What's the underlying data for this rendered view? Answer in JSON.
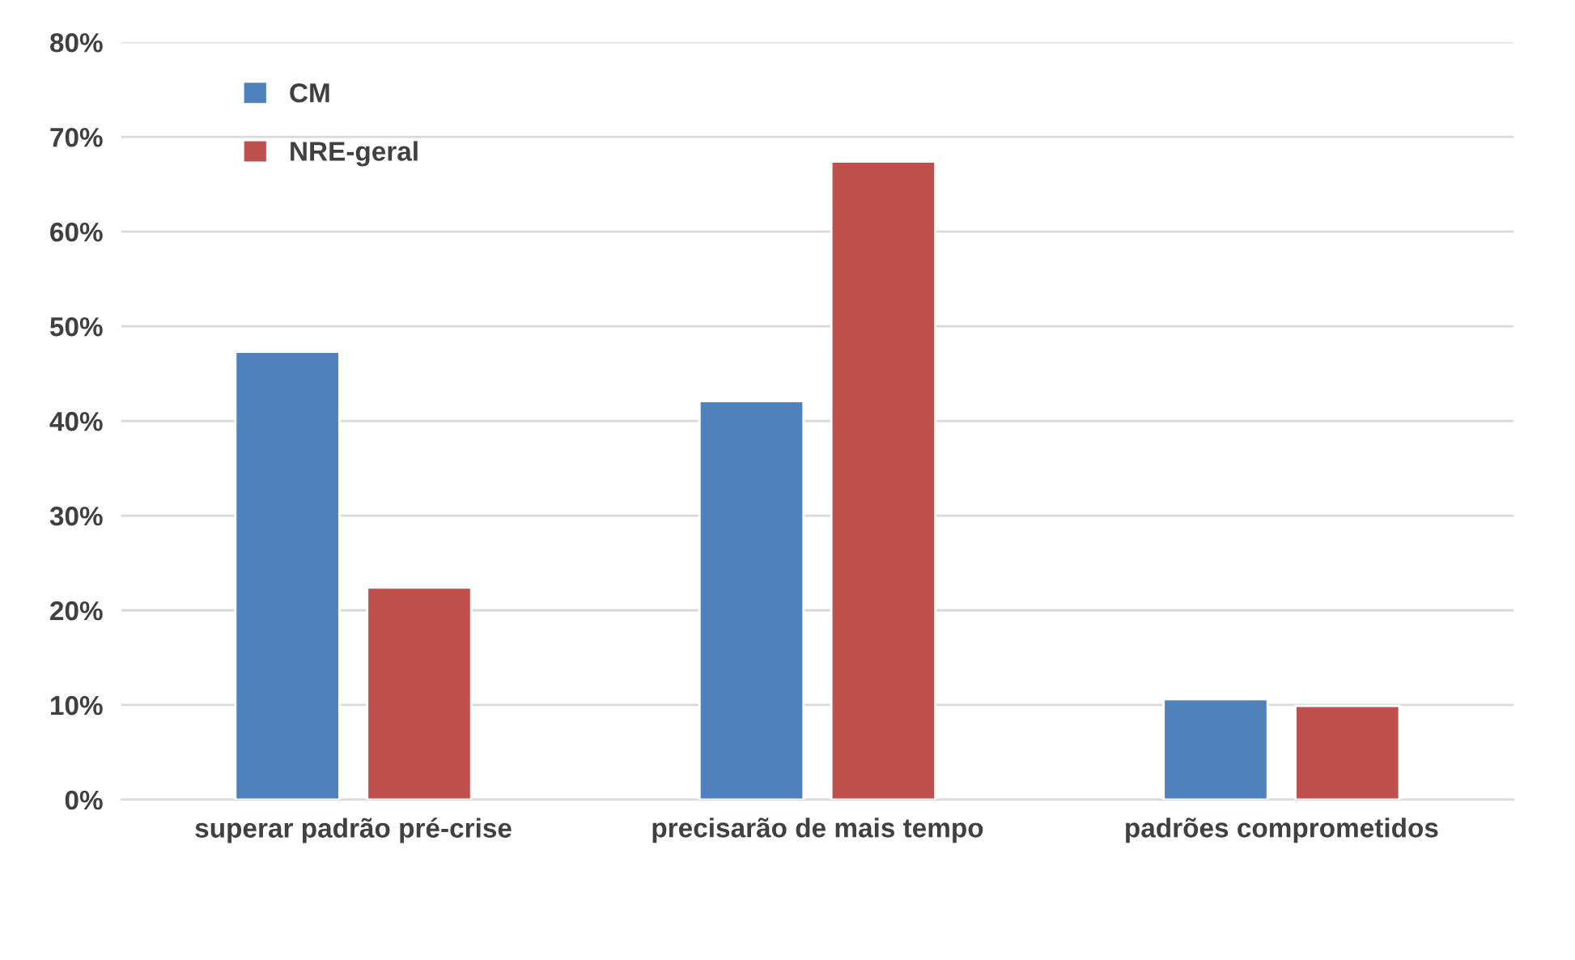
{
  "chart_data": {
    "type": "bar",
    "categories": [
      "superar padrão pré-crise",
      "precisarão de mais tempo",
      "padrões comprometidos"
    ],
    "series": [
      {
        "name": "CM",
        "color": "#4f81bd",
        "values": [
          47.3,
          42.1,
          10.6
        ]
      },
      {
        "name": "NRE-geral",
        "color": "#c0504d",
        "values": [
          22.4,
          67.4,
          9.9
        ]
      }
    ],
    "ylim": [
      0,
      80
    ],
    "yticks": [
      {
        "value": 0,
        "label": "0%"
      },
      {
        "value": 10,
        "label": "10%"
      },
      {
        "value": 20,
        "label": "20%"
      },
      {
        "value": 30,
        "label": "30%"
      },
      {
        "value": 40,
        "label": "40%"
      },
      {
        "value": 50,
        "label": "50%"
      },
      {
        "value": 60,
        "label": "60%"
      },
      {
        "value": 70,
        "label": "70%"
      },
      {
        "value": 80,
        "label": "80%"
      }
    ],
    "grid": "y",
    "legend": "top left"
  }
}
